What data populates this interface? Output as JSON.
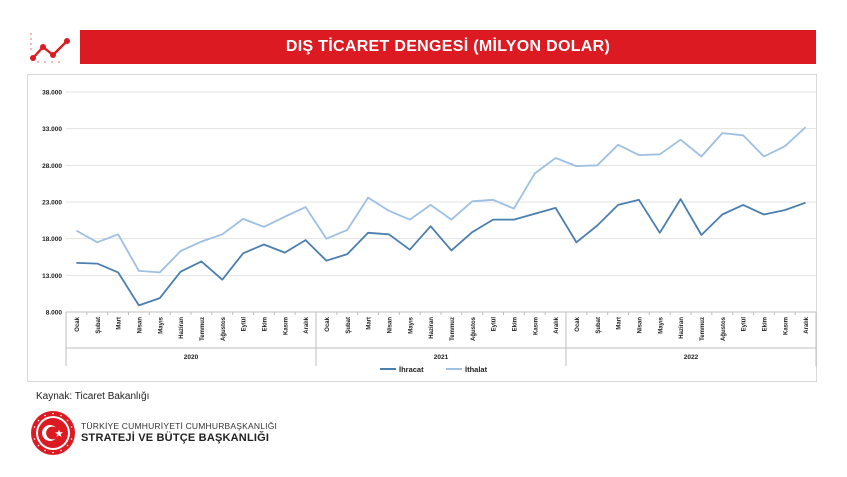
{
  "colors": {
    "brand_red": "#dc1a22",
    "export_line": "#4a7fb0",
    "import_line": "#9dc0e3",
    "grid": "#e3e3e3"
  },
  "header": {
    "title": "DIŞ TİCARET DENGESİ (MİLYON DOLAR)",
    "icon": "line-chart-icon"
  },
  "chart_data": {
    "type": "line",
    "title": "DIŞ TİCARET DENGESİ (MİLYON DOLAR)",
    "ylim": [
      8000,
      38000
    ],
    "yticks": [
      "8.000",
      "13.000",
      "18.000",
      "23.000",
      "28.000",
      "33.000",
      "38.000"
    ],
    "ytick_values": [
      8000,
      13000,
      18000,
      23000,
      28000,
      33000,
      38000
    ],
    "grid": true,
    "legend_position": "bottom",
    "years": [
      {
        "label": "2020",
        "months": 12
      },
      {
        "label": "2021",
        "months": 12
      },
      {
        "label": "2022",
        "months": 12
      }
    ],
    "categories": [
      "Ocak",
      "Şubat",
      "Mart",
      "Nisan",
      "Mayıs",
      "Haziran",
      "Temmuz",
      "Ağustos",
      "Eylül",
      "Ekim",
      "Kasım",
      "Aralık",
      "Ocak",
      "Şubat",
      "Mart",
      "Nisan",
      "Mayıs",
      "Haziran",
      "Temmuz",
      "Ağustos",
      "Eylül",
      "Ekim",
      "Kasım",
      "Aralık",
      "Ocak",
      "Şubat",
      "Mart",
      "Nisan",
      "Mayıs",
      "Haziran",
      "Temmuz",
      "Ağustos",
      "Eylül",
      "Ekim",
      "Kasım",
      "Aralık"
    ],
    "series": [
      {
        "name": "İhracat",
        "color": "#4a7fb0",
        "values": [
          14700,
          14600,
          13400,
          8900,
          9900,
          13500,
          14900,
          12400,
          16000,
          17200,
          16100,
          17800,
          15000,
          15900,
          18800,
          18600,
          16500,
          19700,
          16400,
          18900,
          20600,
          20600,
          21400,
          22200,
          17500,
          19800,
          22600,
          23300,
          18800,
          23400,
          18500,
          21300,
          22600,
          21300,
          21900,
          22900
        ]
      },
      {
        "name": "İthalat",
        "color": "#9dc0e3",
        "values": [
          19100,
          17500,
          18600,
          13600,
          13400,
          16300,
          17600,
          18600,
          20700,
          19600,
          21000,
          22300,
          18000,
          19200,
          23600,
          21800,
          20600,
          22600,
          20600,
          23100,
          23300,
          22100,
          26900,
          29000,
          27900,
          28000,
          30800,
          29400,
          29500,
          31500,
          29200,
          32400,
          32100,
          29200,
          30600,
          33200
        ]
      }
    ]
  },
  "footer": {
    "source": "Kaynak: Ticaret Bakanlığı",
    "org_line1": "TÜRKİYE CUMHURİYETİ CUMHURBAŞKANLIĞI",
    "org_line2": "STRATEJİ VE BÜTÇE BAŞKANLIĞI",
    "emblem_icon": "crescent-star-seal-icon"
  }
}
